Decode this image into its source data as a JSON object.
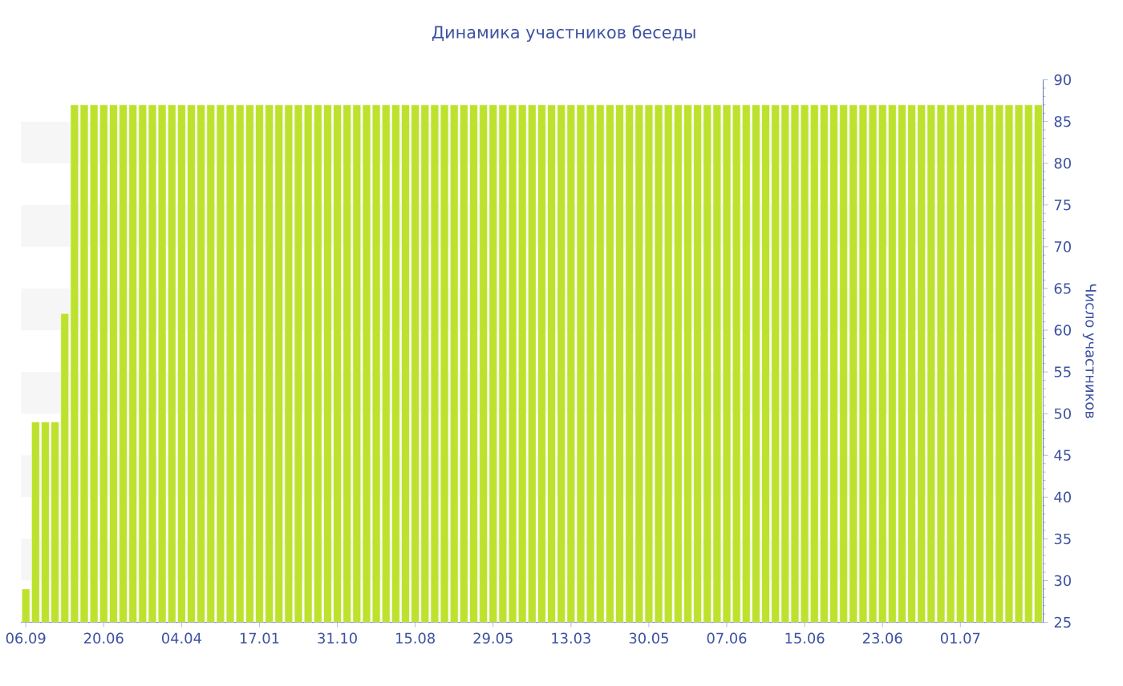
{
  "chart_data": {
    "type": "bar",
    "title": "Динамика участников беседы",
    "ylabel": "Число участников",
    "categories": [
      "06.09",
      null,
      null,
      null,
      null,
      null,
      null,
      null,
      "20.06",
      null,
      null,
      null,
      null,
      null,
      null,
      null,
      "04.04",
      null,
      null,
      null,
      null,
      null,
      null,
      null,
      "17.01",
      null,
      null,
      null,
      null,
      null,
      null,
      null,
      "31.10",
      null,
      null,
      null,
      null,
      null,
      null,
      null,
      "15.08",
      null,
      null,
      null,
      null,
      null,
      null,
      null,
      "29.05",
      null,
      null,
      null,
      null,
      null,
      null,
      null,
      "13.03",
      null,
      null,
      null,
      null,
      null,
      null,
      null,
      "30.05",
      null,
      null,
      null,
      null,
      null,
      null,
      null,
      "07.06",
      null,
      null,
      null,
      null,
      null,
      null,
      null,
      "15.06",
      null,
      null,
      null,
      null,
      null,
      null,
      null,
      "23.06",
      null,
      null,
      null,
      null,
      null,
      null,
      null,
      "01.07",
      null,
      null,
      null,
      null,
      null,
      null,
      null,
      null
    ],
    "values": [
      29,
      49,
      49,
      49,
      62,
      87,
      87,
      87,
      87,
      87,
      87,
      87,
      87,
      87,
      87,
      87,
      87,
      87,
      87,
      87,
      87,
      87,
      87,
      87,
      87,
      87,
      87,
      87,
      87,
      87,
      87,
      87,
      87,
      87,
      87,
      87,
      87,
      87,
      87,
      87,
      87,
      87,
      87,
      87,
      87,
      87,
      87,
      87,
      87,
      87,
      87,
      87,
      87,
      87,
      87,
      87,
      87,
      87,
      87,
      87,
      87,
      87,
      87,
      87,
      87,
      87,
      87,
      87,
      87,
      87,
      87,
      87,
      87,
      87,
      87,
      87,
      87,
      87,
      87,
      87,
      87,
      87,
      87,
      87,
      87,
      87,
      87,
      87,
      87,
      87,
      87,
      87,
      87,
      87,
      87,
      87,
      87,
      87,
      87,
      87,
      87,
      87,
      87,
      87,
      87
    ],
    "color": "#bde22e",
    "ylim": [
      25,
      90
    ],
    "yticks": [
      25,
      30,
      35,
      40,
      45,
      50,
      55,
      60,
      65,
      70,
      75,
      80,
      85,
      90
    ],
    "bands": [
      {
        "axis": "y",
        "from": 80,
        "to": 85,
        "color": "#f6f6f6"
      },
      {
        "axis": "y",
        "from": 70,
        "to": 75,
        "color": "#f6f6f6"
      },
      {
        "axis": "y",
        "from": 60,
        "to": 65,
        "color": "#f6f6f6"
      },
      {
        "axis": "y",
        "from": 50,
        "to": 55,
        "color": "#f6f6f6"
      },
      {
        "axis": "y",
        "from": 40,
        "to": 45,
        "color": "#f6f6f6"
      },
      {
        "axis": "y",
        "from": 30,
        "to": 35,
        "color": "#f6f6f6"
      }
    ]
  }
}
